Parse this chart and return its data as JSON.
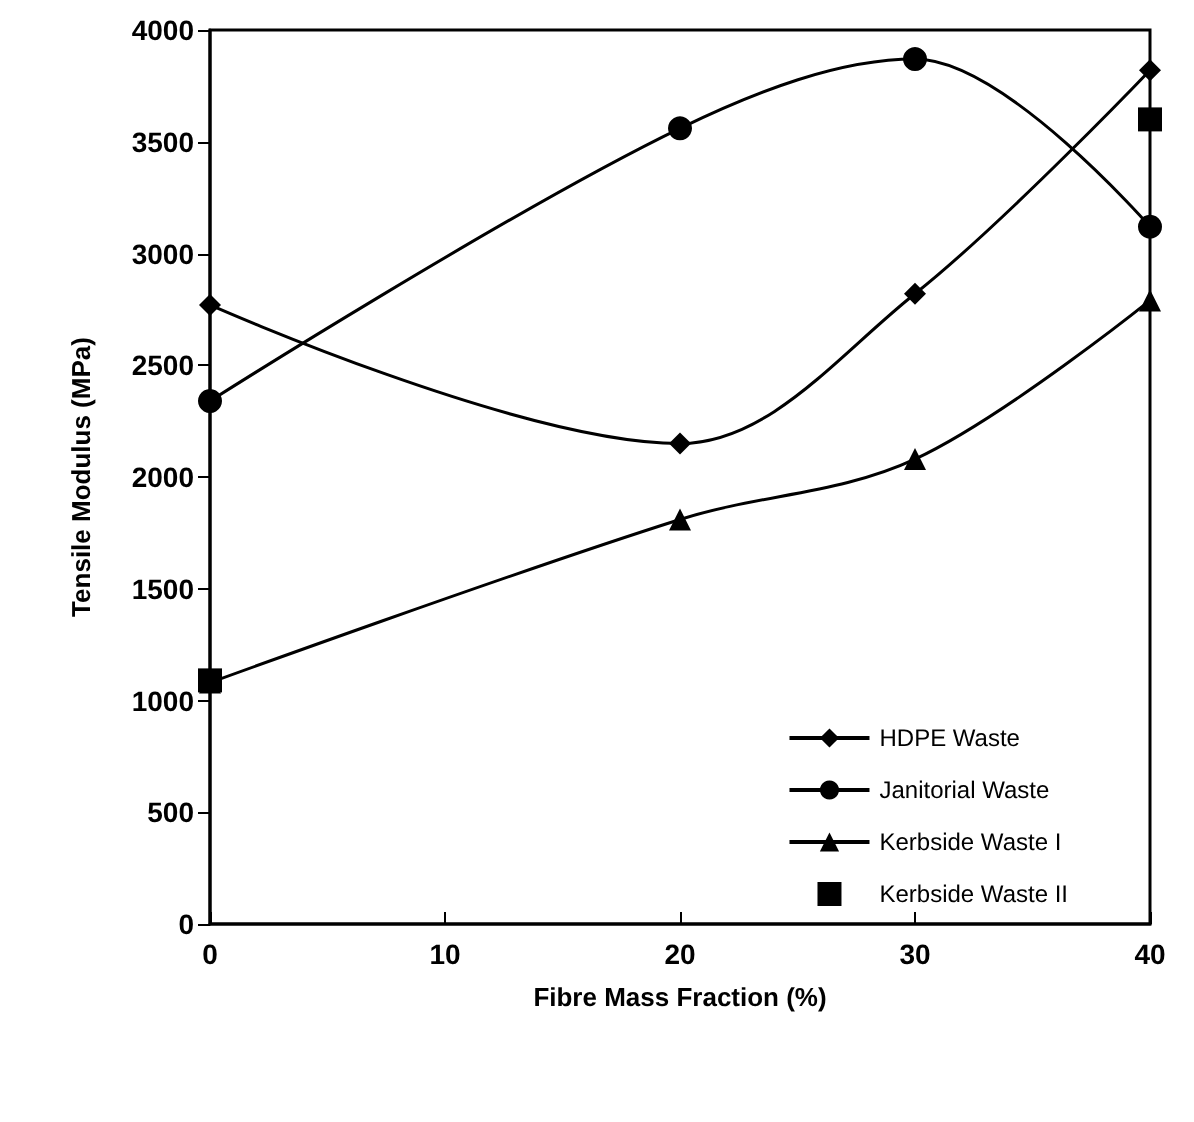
{
  "chart_data": {
    "type": "line",
    "xlabel": "Fibre Mass Fraction (%)",
    "ylabel": "Tensile Modulus (MPa)",
    "xlim": [
      0,
      40
    ],
    "xticks": [
      0,
      10,
      20,
      30,
      40
    ],
    "ylim": [
      0,
      4000
    ],
    "yticks": [
      0,
      500,
      1000,
      1500,
      2000,
      2500,
      3000,
      3500,
      4000
    ],
    "grid": false,
    "legend": "bottom right",
    "line_style": "solid",
    "series": [
      {
        "name": "HDPE Waste",
        "color": "#000000",
        "marker": "diamond",
        "x": [
          0,
          20,
          30,
          40
        ],
        "values": [
          2770,
          2150,
          2820,
          3820
        ]
      },
      {
        "name": "Janitorial Waste",
        "color": "#000000",
        "marker": "circle",
        "x": [
          0,
          20,
          30,
          40
        ],
        "values": [
          2340,
          3560,
          3870,
          3120
        ]
      },
      {
        "name": "Kerbside Waste I",
        "color": "#000000",
        "marker": "triangle",
        "x": [
          0,
          20,
          30,
          40
        ],
        "values": [
          1080,
          1810,
          2080,
          2790
        ]
      },
      {
        "name": "Kerbside Waste II",
        "type": "scatter",
        "color": "#000000",
        "marker": "square",
        "x": [
          0,
          40
        ],
        "values": [
          1090,
          3600
        ]
      }
    ]
  }
}
